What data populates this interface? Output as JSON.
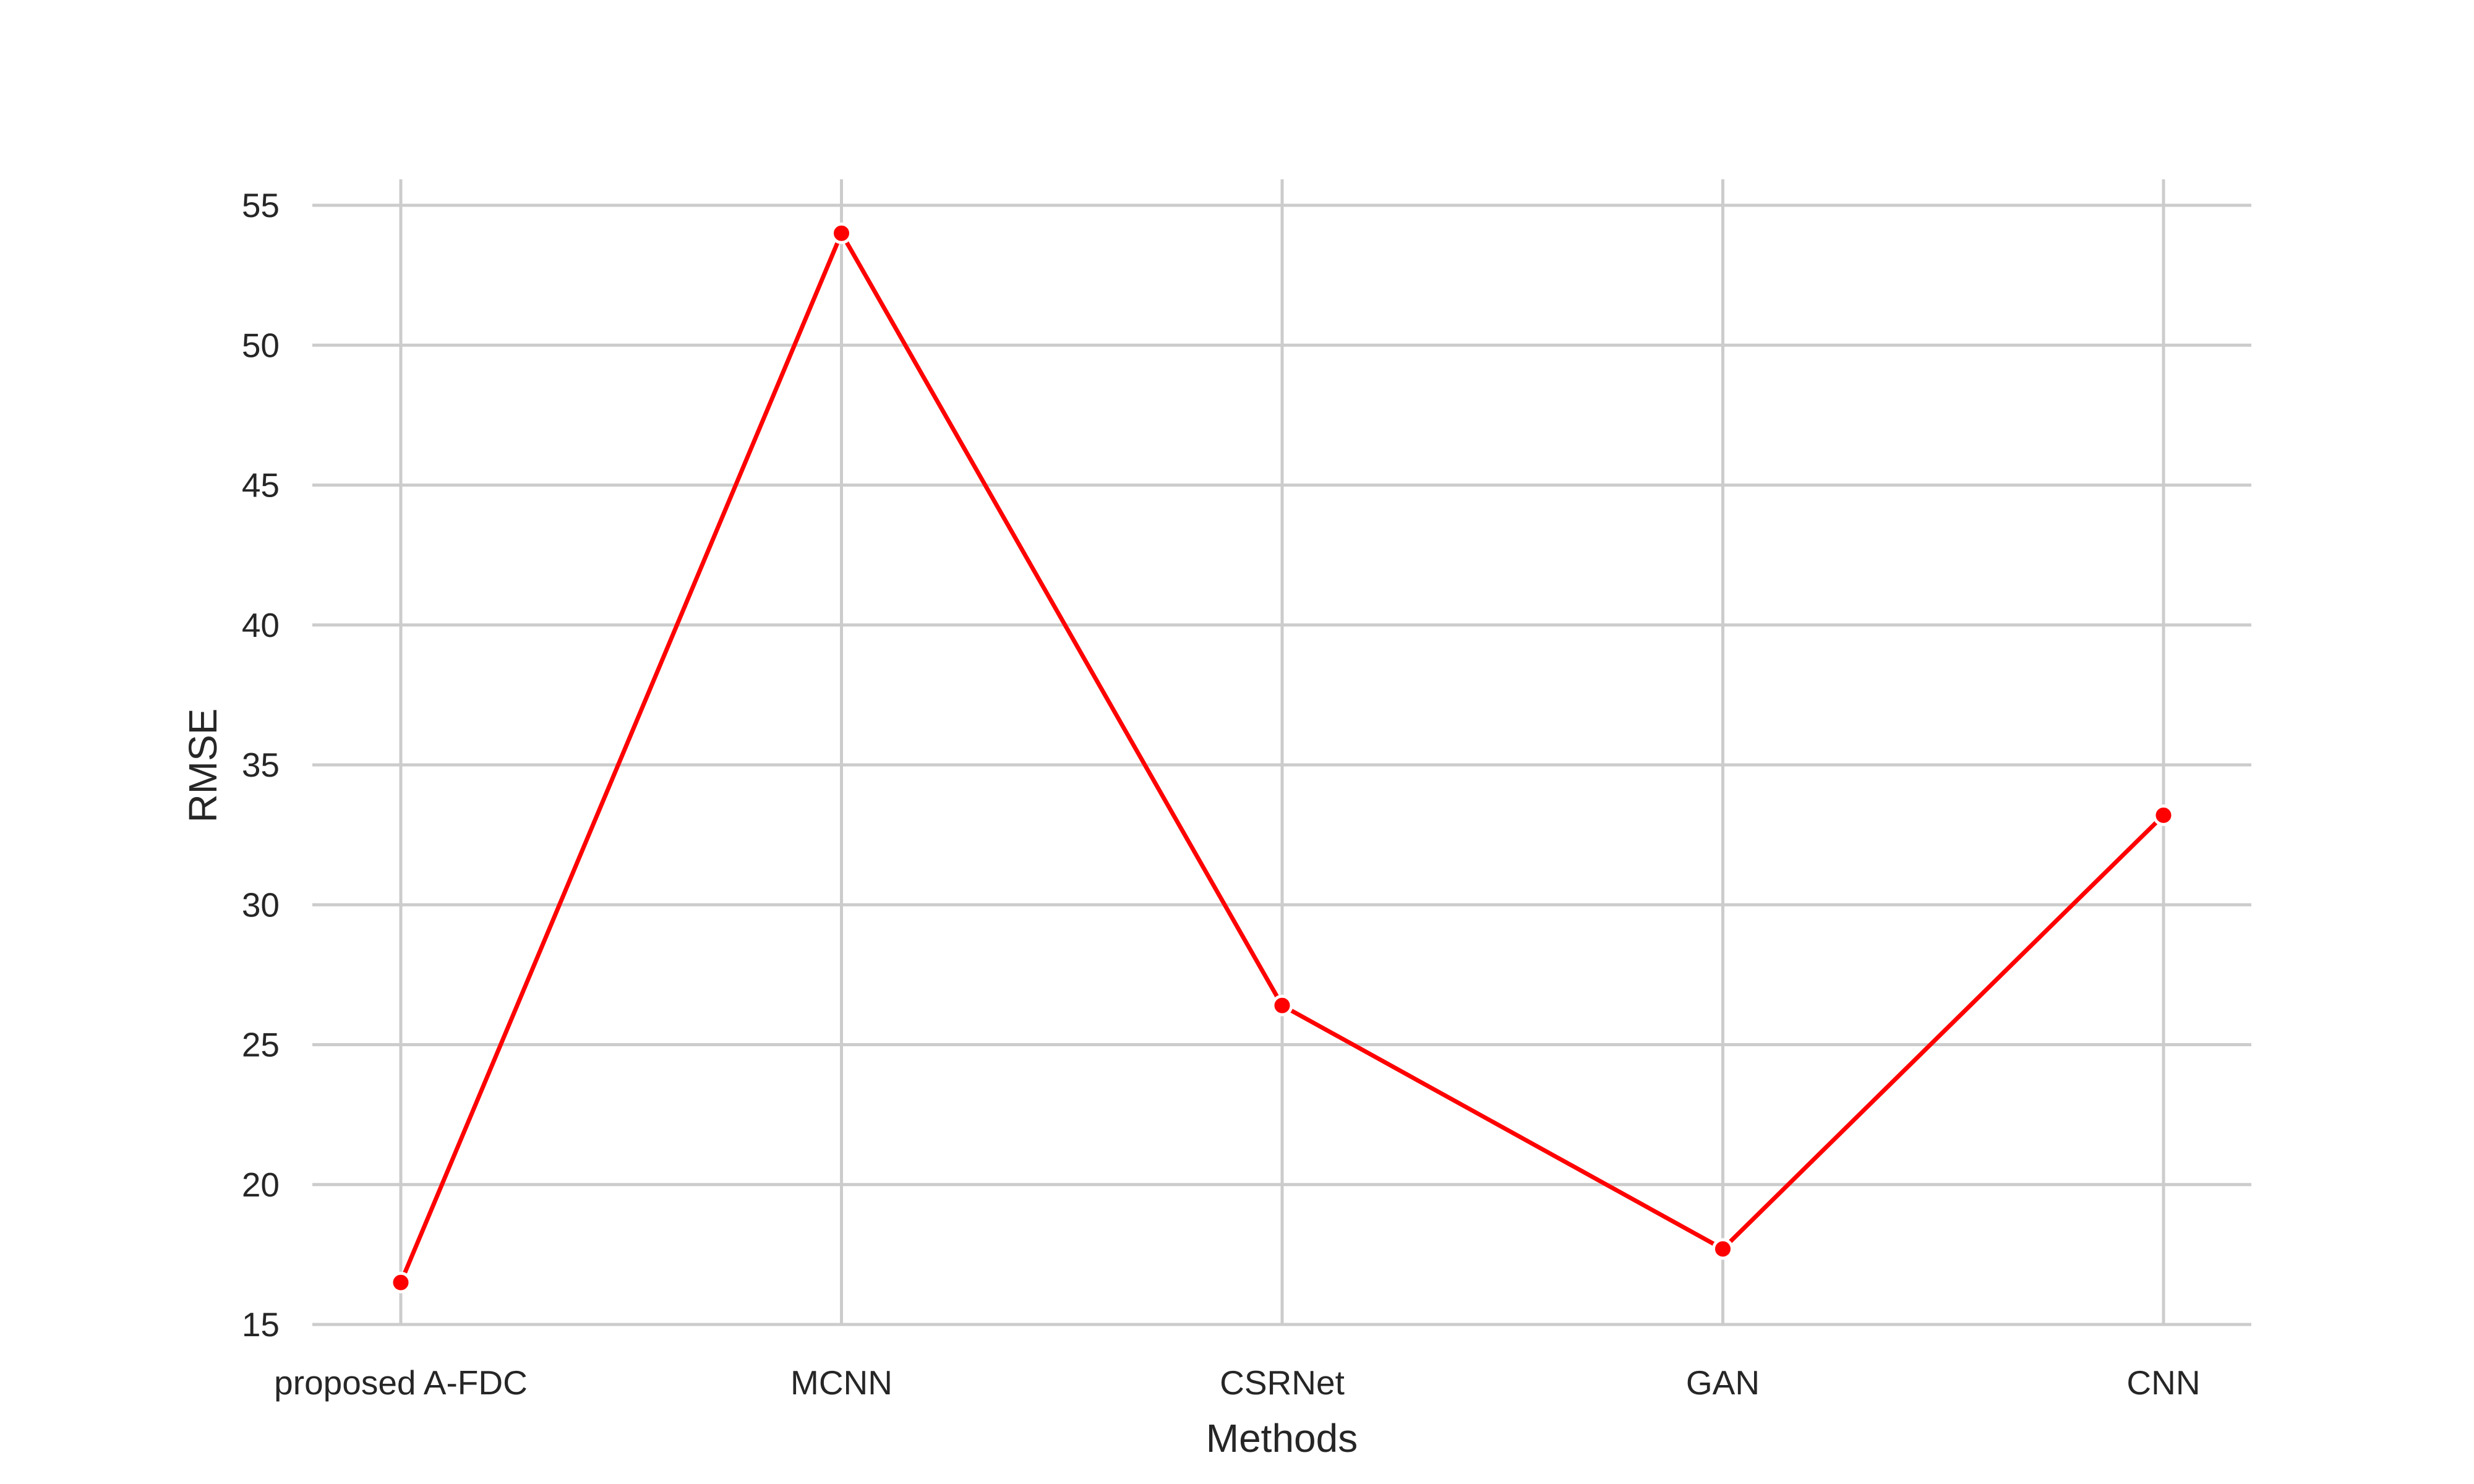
{
  "chart_data": {
    "type": "line",
    "title": "",
    "xlabel": "Methods",
    "ylabel": "RMSE",
    "categories": [
      "proposed A-FDC",
      "MCNN",
      "CSRNet",
      "GAN",
      "CNN"
    ],
    "series": [
      {
        "values": [
          16.5,
          54.0,
          26.4,
          17.7,
          33.2
        ],
        "color": "#ff0000"
      }
    ],
    "ylim": [
      15,
      55
    ],
    "yticks": [
      "15",
      "20",
      "25",
      "30",
      "35",
      "40",
      "45",
      "50",
      "55"
    ],
    "grid": true,
    "legend": "none"
  }
}
